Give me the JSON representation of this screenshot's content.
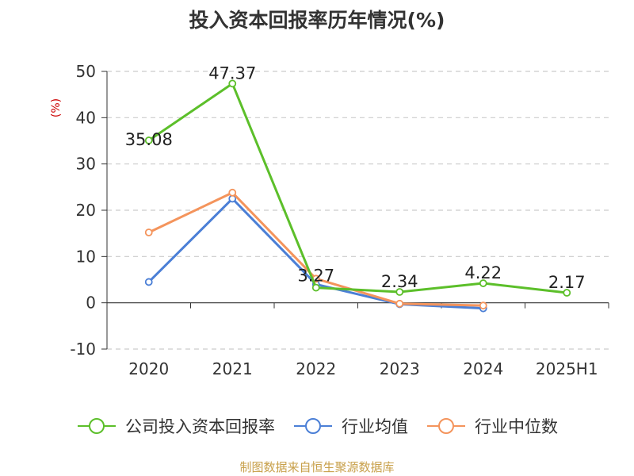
{
  "title": "投入资本回报率历年情况(%)",
  "source": "制图数据来自恒生聚源数据库",
  "colors": {
    "company": "#5cbf2a",
    "industry_avg": "#4b7fd6",
    "industry_median": "#f4945c",
    "grid": "#cccccc",
    "axis": "#333333",
    "text": "#333333"
  },
  "chart_data": {
    "type": "line",
    "title": "投入资本回报率历年情况(%)",
    "ylabel": "(%)",
    "xlabel": "",
    "categories": [
      "2020",
      "2021",
      "2022",
      "2023",
      "2024",
      "2025H1"
    ],
    "ylim": [
      -10,
      50
    ],
    "yticks": [
      -10,
      0,
      10,
      20,
      30,
      40,
      50
    ],
    "grid": true,
    "legend_position": "bottom",
    "series": [
      {
        "name": "公司投入资本回报率",
        "color_key": "company",
        "values": [
          35.08,
          47.37,
          3.27,
          2.34,
          4.22,
          2.17
        ],
        "labels": [
          "35.08",
          "47.37",
          "3.27",
          "2.34",
          "4.22",
          "2.17"
        ]
      },
      {
        "name": "行业均值",
        "color_key": "industry_avg",
        "values": [
          4.5,
          22.5,
          4.0,
          -0.3,
          -1.2,
          null
        ]
      },
      {
        "name": "行业中位数",
        "color_key": "industry_median",
        "values": [
          15.2,
          23.8,
          5.2,
          -0.2,
          -0.6,
          null
        ]
      }
    ]
  }
}
